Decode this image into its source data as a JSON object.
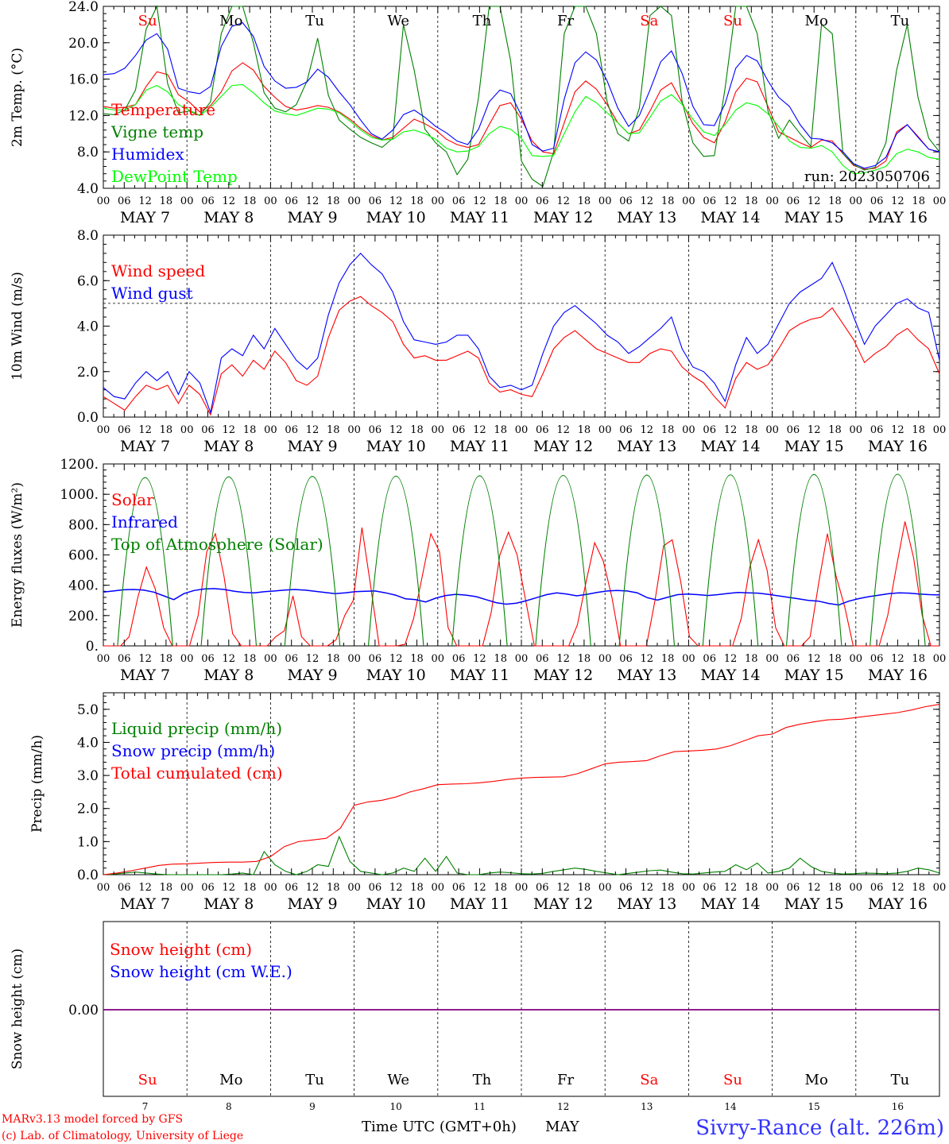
{
  "chart_data": [
    {
      "type": "line",
      "ylabel": "2m Temp. (°C)",
      "ylim": [
        4,
        24
      ],
      "yticks": [
        "4.0",
        "8.0",
        "12.0",
        "16.0",
        "20.0",
        "24.0"
      ],
      "run_label": "run: 2023050706",
      "grid": "vertical dashed at day boundaries",
      "legend": "top-left",
      "series": [
        {
          "name": "Temperature",
          "color": "#ff0000",
          "values": [
            13.0,
            12.8,
            12.9,
            13.2,
            15.2,
            16.8,
            16.5,
            14.3,
            13.5,
            12.4,
            13.1,
            14.6,
            16.9,
            17.8,
            17.0,
            15.2,
            14.0,
            13.0,
            12.6,
            12.8,
            13.1,
            12.9,
            12.4,
            11.6,
            10.6,
            9.8,
            9.3,
            9.6,
            10.6,
            11.6,
            11.1,
            10.4,
            9.4,
            8.8,
            8.5,
            8.8,
            11.0,
            13.1,
            13.4,
            11.6,
            9.2,
            8.0,
            7.8,
            11.2,
            14.6,
            15.8,
            14.9,
            13.2,
            11.2,
            10.0,
            10.4,
            12.5,
            14.8,
            15.6,
            13.4,
            11.1,
            9.6,
            9.0,
            11.3,
            14.6,
            16.1,
            15.7,
            13.0,
            10.2,
            9.6,
            9.0,
            8.5,
            9.3,
            9.2,
            7.8,
            6.5,
            6.1,
            6.2,
            7.0,
            10.2,
            11.0,
            9.7,
            8.3,
            8.0
          ]
        },
        {
          "name": "Vigne temp",
          "color": "#008000",
          "values": [
            12.2,
            12.1,
            12.6,
            14.8,
            21.5,
            24.0,
            15.5,
            12.3,
            12.5,
            12.0,
            13.5,
            21.0,
            24.0,
            24.0,
            20.0,
            14.5,
            12.8,
            12.4,
            13.2,
            15.8,
            20.5,
            14.2,
            11.5,
            10.5,
            9.6,
            9.0,
            8.5,
            9.5,
            22.0,
            17.0,
            10.5,
            9.0,
            8.0,
            5.5,
            7.2,
            14.0,
            24.0,
            24.0,
            18.0,
            7.0,
            5.0,
            4.2,
            8.0,
            21.0,
            24.0,
            24.0,
            21.0,
            13.5,
            10.0,
            9.2,
            12.8,
            23.0,
            24.0,
            23.0,
            13.5,
            9.0,
            7.5,
            7.6,
            15.0,
            24.0,
            24.0,
            21.0,
            12.5,
            9.5,
            11.5,
            10.0,
            8.6,
            22.0,
            21.0,
            7.8,
            6.6,
            6.0,
            6.3,
            9.0,
            17.0,
            22.0,
            14.0,
            9.5,
            8.0
          ]
        },
        {
          "name": "Humidex",
          "color": "#0000ff",
          "values": [
            16.5,
            16.6,
            17.2,
            18.6,
            20.3,
            21.0,
            19.3,
            15.0,
            14.6,
            14.4,
            15.2,
            19.6,
            21.8,
            22.2,
            20.7,
            17.4,
            15.8,
            15.0,
            15.1,
            15.7,
            17.1,
            16.2,
            14.6,
            13.2,
            11.5,
            10.0,
            9.4,
            10.4,
            12.1,
            12.6,
            11.8,
            10.8,
            10.1,
            9.2,
            8.8,
            10.5,
            13.5,
            14.8,
            14.4,
            12.0,
            8.8,
            8.1,
            8.4,
            13.8,
            17.8,
            19.0,
            18.1,
            15.8,
            12.8,
            10.8,
            12.0,
            14.8,
            17.9,
            19.1,
            16.6,
            13.0,
            11.0,
            10.9,
            13.3,
            17.2,
            18.6,
            18.0,
            15.8,
            14.0,
            13.0,
            11.0,
            9.5,
            9.4,
            9.0,
            8.0,
            6.7,
            6.2,
            6.5,
            7.4,
            10.0,
            11.0,
            9.6,
            8.3,
            8.0
          ]
        },
        {
          "name": "DewPoint Temp",
          "color": "#00ff00",
          "values": [
            12.8,
            12.6,
            12.6,
            13.2,
            14.8,
            15.3,
            14.6,
            13.2,
            12.6,
            12.0,
            12.9,
            14.1,
            15.3,
            15.4,
            14.5,
            13.4,
            12.5,
            12.2,
            12.0,
            12.4,
            12.8,
            12.7,
            12.3,
            11.4,
            10.4,
            9.6,
            9.3,
            9.4,
            10.2,
            10.4,
            10.0,
            9.4,
            8.4,
            8.0,
            8.1,
            8.6,
            10.0,
            10.8,
            10.5,
            9.5,
            7.6,
            7.5,
            7.6,
            10.0,
            12.4,
            14.1,
            13.4,
            12.3,
            11.2,
            10.0,
            10.1,
            11.8,
            13.6,
            14.3,
            13.2,
            11.6,
            10.2,
            9.8,
            11.0,
            12.6,
            13.4,
            13.1,
            12.2,
            10.8,
            9.2,
            8.5,
            8.4,
            8.7,
            8.0,
            6.5,
            5.6,
            5.7,
            6.0,
            6.4,
            7.8,
            8.3,
            8.0,
            7.4,
            7.2
          ]
        }
      ]
    },
    {
      "type": "line",
      "ylabel": "10m Wind (m/s)",
      "ylim": [
        0,
        8
      ],
      "yticks": [
        "0.0",
        "2.0",
        "4.0",
        "6.0",
        "8.0"
      ],
      "reference_line": 5,
      "legend": "top-left",
      "series": [
        {
          "name": "Wind speed",
          "color": "#ff0000",
          "values": [
            0.9,
            0.6,
            0.3,
            0.9,
            1.4,
            1.2,
            1.4,
            0.6,
            1.4,
            1.0,
            0.1,
            1.9,
            2.3,
            1.8,
            2.5,
            2.1,
            2.9,
            2.4,
            1.6,
            1.4,
            1.8,
            3.5,
            4.7,
            5.1,
            5.3,
            4.9,
            4.6,
            4.2,
            3.2,
            2.6,
            2.7,
            2.5,
            2.5,
            2.7,
            2.9,
            2.6,
            1.5,
            1.1,
            1.2,
            1.0,
            0.9,
            1.9,
            3.0,
            3.5,
            3.8,
            3.4,
            3.0,
            2.8,
            2.6,
            2.4,
            2.4,
            2.8,
            3.0,
            2.9,
            2.2,
            1.8,
            1.5,
            0.9,
            0.4,
            1.7,
            2.4,
            2.1,
            2.3,
            3.0,
            3.8,
            4.1,
            4.3,
            4.4,
            4.8,
            4.1,
            3.4,
            2.4,
            2.8,
            3.1,
            3.6,
            3.9,
            3.4,
            3.0,
            1.9
          ]
        },
        {
          "name": "Wind gust",
          "color": "#0000ff",
          "values": [
            1.3,
            0.9,
            0.8,
            1.5,
            2.0,
            1.6,
            2.0,
            1.0,
            2.0,
            1.5,
            0.2,
            2.6,
            3.0,
            2.7,
            3.6,
            3.0,
            3.9,
            3.2,
            2.5,
            2.1,
            2.6,
            4.5,
            5.9,
            6.7,
            7.2,
            6.7,
            6.3,
            5.5,
            4.2,
            3.4,
            3.3,
            3.2,
            3.3,
            3.6,
            3.6,
            3.0,
            1.8,
            1.3,
            1.4,
            1.2,
            1.4,
            2.8,
            4.0,
            4.6,
            4.9,
            4.5,
            4.1,
            3.6,
            3.3,
            2.8,
            3.1,
            3.5,
            3.9,
            4.4,
            3.0,
            2.2,
            2.0,
            1.5,
            0.7,
            2.3,
            3.5,
            2.8,
            3.2,
            4.1,
            5.0,
            5.5,
            5.8,
            6.1,
            6.8,
            5.7,
            4.4,
            3.2,
            4.0,
            4.5,
            5.0,
            5.2,
            4.8,
            4.6,
            2.5
          ]
        }
      ]
    },
    {
      "type": "line",
      "ylabel": "Energy fluxes (W/m²)",
      "ylim": [
        0,
        1200
      ],
      "yticks": [
        "0.",
        "200.",
        "400.",
        "600.",
        "800.",
        "1000.",
        "1200."
      ],
      "legend": "top-left",
      "series": [
        {
          "name": "Solar",
          "color": "#ff0000",
          "values": [
            0,
            0,
            0,
            60,
            320,
            520,
            380,
            120,
            0,
            0,
            0,
            200,
            620,
            740,
            460,
            80,
            0,
            0,
            0,
            0,
            60,
            100,
            330,
            60,
            0,
            0,
            0,
            40,
            200,
            300,
            780,
            400,
            0,
            0,
            0,
            10,
            180,
            460,
            740,
            620,
            120,
            0,
            0,
            0,
            0,
            220,
            600,
            750,
            600,
            300,
            0,
            0,
            0,
            0,
            0,
            140,
            420,
            680,
            560,
            320,
            0,
            0,
            0,
            0,
            300,
            660,
            700,
            420,
            60,
            0,
            0,
            0,
            0,
            0,
            180,
            520,
            700,
            500,
            120,
            0,
            0,
            0,
            60,
            420,
            740,
            460,
            260,
            0,
            0,
            0,
            0,
            200,
            520,
            820,
            580,
            200,
            0,
            0
          ]
        },
        {
          "name": "Infrared",
          "color": "#0000ff",
          "values": [
            355,
            362,
            370,
            372,
            368,
            355,
            330,
            305,
            345,
            365,
            375,
            378,
            372,
            360,
            352,
            350,
            358,
            362,
            368,
            372,
            368,
            360,
            352,
            345,
            350,
            358,
            360,
            362,
            350,
            335,
            310,
            305,
            290,
            315,
            332,
            340,
            335,
            325,
            305,
            285,
            275,
            282,
            298,
            318,
            338,
            350,
            342,
            330,
            340,
            352,
            362,
            366,
            362,
            350,
            318,
            302,
            320,
            338,
            342,
            338,
            332,
            338,
            346,
            352,
            350,
            348,
            340,
            330,
            320,
            310,
            300,
            295,
            280,
            270,
            295,
            312,
            325,
            335,
            345,
            350,
            348,
            342,
            338,
            336
          ]
        },
        {
          "name": "Top of Atmosphere (Solar)",
          "color": "#008000",
          "values": [
            0,
            0,
            1110,
            0,
            0,
            1115,
            0,
            0,
            1118,
            0,
            0,
            1120,
            0,
            0,
            1122,
            0,
            0,
            1124,
            0,
            0,
            1126,
            0,
            0,
            1128,
            0,
            0,
            1130,
            0,
            0,
            1132,
            0,
            0
          ]
        }
      ]
    },
    {
      "type": "line",
      "ylabel": "Precip (mm/h)",
      "ylim": [
        0,
        5.5
      ],
      "yticks": [
        "0.0",
        "1.0",
        "2.0",
        "3.0",
        "4.0",
        "5.0"
      ],
      "legend": "top-left",
      "series": [
        {
          "name": "Liquid precip (mm/h)",
          "color": "#008000",
          "values": [
            0,
            0.02,
            0.05,
            0.08,
            0.05,
            0.02,
            0,
            0,
            0,
            0,
            0,
            0,
            0.02,
            0.05,
            0.0,
            0.7,
            0.3,
            0.1,
            0,
            0.1,
            0.3,
            0.25,
            1.15,
            0.4,
            0.1,
            0.05,
            0,
            0.05,
            0.2,
            0.1,
            0.5,
            0.1,
            0.55,
            0.05,
            0,
            0,
            0.05,
            0.08,
            0.06,
            0.03,
            0.02,
            0.04,
            0.1,
            0.15,
            0.2,
            0.16,
            0.1,
            0.05,
            0,
            0.04,
            0.08,
            0.12,
            0.14,
            0.08,
            0.03,
            0.02,
            0.05,
            0.08,
            0.1,
            0.3,
            0.15,
            0.35,
            0.05,
            0.1,
            0.2,
            0.5,
            0.25,
            0.1,
            0.05,
            0.02,
            0.03,
            0.05,
            0.04,
            0.03,
            0.05,
            0.1,
            0.2,
            0.15,
            0.05
          ]
        },
        {
          "name": "Snow precip (mm/h)",
          "color": "#0000ff",
          "values": []
        },
        {
          "name": "Total cumulated (cm)",
          "color": "#ff0000",
          "values": [
            0,
            0.05,
            0.12,
            0.2,
            0.28,
            0.32,
            0.33,
            0.35,
            0.37,
            0.38,
            0.38,
            0.4,
            0.55,
            0.85,
            1.0,
            1.05,
            1.1,
            1.4,
            2.1,
            2.2,
            2.25,
            2.35,
            2.5,
            2.6,
            2.72,
            2.74,
            2.75,
            2.78,
            2.82,
            2.88,
            2.92,
            2.94,
            2.95,
            2.96,
            3.05,
            3.2,
            3.35,
            3.4,
            3.42,
            3.45,
            3.6,
            3.72,
            3.74,
            3.76,
            3.8,
            3.9,
            4.05,
            4.2,
            4.25,
            4.45,
            4.55,
            4.62,
            4.68,
            4.7,
            4.75,
            4.8,
            4.85,
            4.9,
            4.98,
            5.08,
            5.15
          ]
        }
      ]
    },
    {
      "type": "line",
      "ylabel": "Snow height (cm)",
      "yticks": [
        "0.00"
      ],
      "legend": "top-left",
      "series": [
        {
          "name": "Snow height (cm)",
          "color": "#ff0000",
          "values": [
            0,
            0
          ]
        },
        {
          "name": "Snow height (cm W.E.)",
          "color": "#0000ff",
          "values": [
            0,
            0
          ]
        }
      ],
      "baseline_color": "#800080"
    }
  ],
  "days": [
    {
      "weekday": "Su",
      "color": "#ff0000",
      "date_label": "MAY  7",
      "num": "7"
    },
    {
      "weekday": "Mo",
      "color": "#000000",
      "date_label": "MAY  8",
      "num": "8"
    },
    {
      "weekday": "Tu",
      "color": "#000000",
      "date_label": "MAY  9",
      "num": "9"
    },
    {
      "weekday": "We",
      "color": "#000000",
      "date_label": "MAY 10",
      "num": "10"
    },
    {
      "weekday": "Th",
      "color": "#000000",
      "date_label": "MAY 11",
      "num": "11"
    },
    {
      "weekday": "Fr",
      "color": "#000000",
      "date_label": "MAY 12",
      "num": "12"
    },
    {
      "weekday": "Sa",
      "color": "#ff0000",
      "date_label": "MAY 13",
      "num": "13"
    },
    {
      "weekday": "Su",
      "color": "#ff0000",
      "date_label": "MAY 14",
      "num": "14"
    },
    {
      "weekday": "Mo",
      "color": "#000000",
      "date_label": "MAY 15",
      "num": "15"
    },
    {
      "weekday": "Tu",
      "color": "#000000",
      "date_label": "MAY 16",
      "num": "16"
    }
  ],
  "hour_ticks": [
    "00",
    "06",
    "12",
    "18"
  ],
  "footer": {
    "model_line1": "MARv3.13 model forced by GFS",
    "model_line2": "(c) Lab. of Climatology, University of Liege",
    "xaxis_title": "Time UTC (GMT+0h)",
    "month": "MAY",
    "station": "Sivry-Rance (alt. 226m)"
  }
}
